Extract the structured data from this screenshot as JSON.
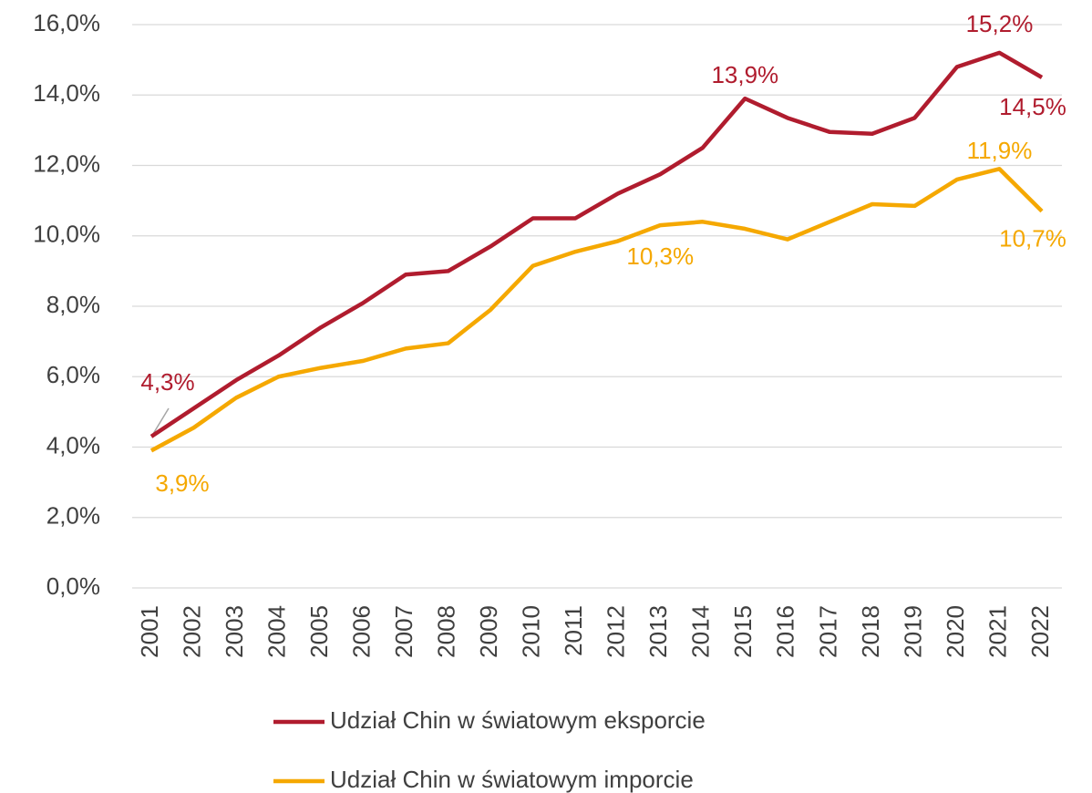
{
  "chart_data": {
    "type": "line",
    "categories": [
      "2001",
      "2002",
      "2003",
      "2004",
      "2005",
      "2006",
      "2007",
      "2008",
      "2009",
      "2010",
      "2011",
      "2012",
      "2013",
      "2014",
      "2015",
      "2016",
      "2017",
      "2018",
      "2019",
      "2020",
      "2021",
      "2022"
    ],
    "series": [
      {
        "name": "Udział Chin w światowym eksporcie",
        "color": "#b01c2e",
        "values": [
          4.3,
          5.1,
          5.9,
          6.6,
          7.4,
          8.1,
          8.9,
          9.0,
          9.7,
          10.5,
          10.5,
          11.2,
          11.75,
          12.5,
          13.9,
          13.35,
          12.95,
          12.9,
          13.35,
          14.8,
          15.2,
          14.5
        ],
        "value_labels": [
          "4,3%",
          null,
          null,
          null,
          null,
          null,
          null,
          null,
          null,
          null,
          null,
          null,
          null,
          null,
          "13,9%",
          null,
          null,
          null,
          null,
          null,
          "15,2%",
          "14,5%"
        ]
      },
      {
        "name": "Udział Chin w światowym imporcie",
        "color": "#f5a800",
        "values": [
          3.9,
          4.55,
          5.4,
          6.0,
          6.25,
          6.45,
          6.8,
          6.95,
          7.9,
          9.15,
          9.55,
          9.85,
          10.3,
          10.4,
          10.2,
          9.9,
          10.4,
          10.9,
          10.85,
          11.6,
          11.9,
          10.7
        ],
        "value_labels": [
          "3,9%",
          null,
          null,
          null,
          null,
          null,
          null,
          null,
          null,
          null,
          null,
          null,
          "10,3%",
          null,
          null,
          null,
          null,
          null,
          null,
          null,
          "11,9%",
          "10,7%"
        ]
      }
    ],
    "ylim": [
      0,
      16
    ],
    "yticks": [
      {
        "value": 0,
        "label": "0,0%"
      },
      {
        "value": 2,
        "label": "2,0%"
      },
      {
        "value": 4,
        "label": "4,0%"
      },
      {
        "value": 6,
        "label": "6,0%"
      },
      {
        "value": 8,
        "label": "8,0%"
      },
      {
        "value": 10,
        "label": "10,0%"
      },
      {
        "value": 12,
        "label": "12,0%"
      },
      {
        "value": 14,
        "label": "14,0%"
      },
      {
        "value": 16,
        "label": "16,0%"
      }
    ],
    "grid": true,
    "legend": "bottom"
  }
}
